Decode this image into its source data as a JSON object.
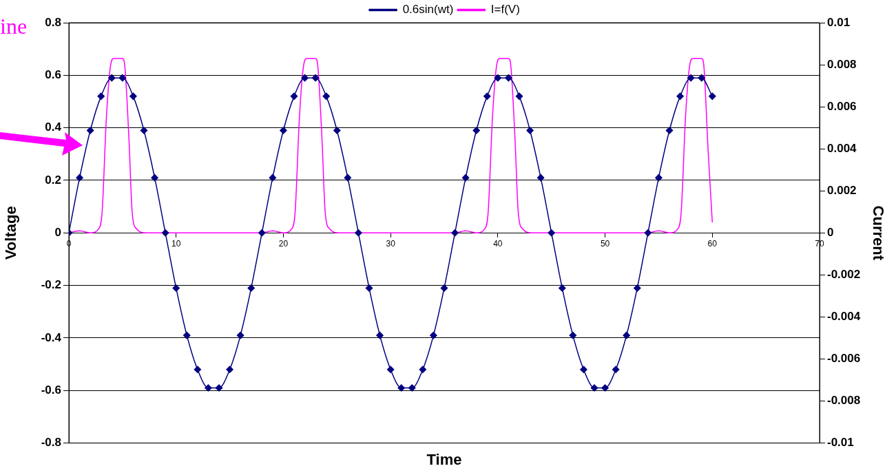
{
  "chart_data": {
    "type": "line",
    "xlabel": "Time",
    "ylabel": "Voltage",
    "y2label": "Current",
    "xlim": [
      0,
      70
    ],
    "xticks": [
      0,
      10,
      20,
      30,
      40,
      50,
      60,
      70
    ],
    "ylim": [
      -0.8,
      0.8
    ],
    "yticks": [
      -0.8,
      -0.6,
      -0.4,
      -0.2,
      0,
      0.2,
      0.4,
      0.6,
      0.8
    ],
    "y2lim": [
      -0.01,
      0.01
    ],
    "y2ticks": [
      -0.01,
      -0.008,
      -0.006,
      -0.004,
      -0.002,
      0,
      0.002,
      0.004,
      0.006,
      0.008,
      0.01
    ],
    "grid": "y",
    "legend": "top",
    "annotations": [
      "ine"
    ],
    "series": [
      {
        "name": "0.6sin(wt)",
        "color": "#000080",
        "marker": "diamond",
        "x": [
          0,
          1,
          2,
          3,
          4,
          5,
          6,
          7,
          8,
          9,
          10,
          11,
          12,
          13,
          14,
          15,
          16,
          17,
          18,
          19,
          20,
          21,
          22,
          23,
          24,
          25,
          26,
          27,
          28,
          29,
          30,
          31,
          32,
          33,
          34,
          35,
          36,
          37,
          38,
          39,
          40,
          41,
          42,
          43,
          44,
          45,
          46,
          47,
          48,
          49,
          50,
          51,
          52,
          53,
          54,
          55,
          56,
          57,
          58,
          59,
          60
        ],
        "values": [
          0,
          0.21,
          0.39,
          0.52,
          0.59,
          0.59,
          0.52,
          0.39,
          0.21,
          0,
          -0.21,
          -0.39,
          -0.52,
          -0.59,
          -0.59,
          -0.52,
          -0.39,
          -0.21,
          0,
          0.21,
          0.39,
          0.52,
          0.59,
          0.59,
          0.52,
          0.39,
          0.21,
          0,
          -0.21,
          -0.39,
          -0.52,
          -0.59,
          -0.59,
          -0.52,
          -0.39,
          -0.21,
          0,
          0.21,
          0.39,
          0.52,
          0.59,
          0.59,
          0.52,
          0.39,
          0.21,
          0,
          -0.21,
          -0.39,
          -0.52,
          -0.59,
          -0.59,
          -0.52,
          -0.39,
          -0.21,
          0,
          0.21,
          0.39,
          0.52,
          0.59,
          0.59,
          0.52
        ]
      },
      {
        "name": "I=f(V)",
        "color": "#ff00ff",
        "marker": "none",
        "axis": "y2",
        "x": [
          0,
          1,
          2,
          2.8,
          3.1,
          3.5,
          3.9,
          4.2,
          5,
          5.2,
          5.6,
          5.9,
          6.3,
          7.2,
          18,
          19,
          20,
          20.8,
          21.1,
          21.5,
          21.9,
          22.2,
          23,
          23.2,
          23.6,
          23.9,
          24.3,
          25.2,
          36,
          37,
          38,
          38.8,
          39.1,
          39.5,
          39.9,
          40.2,
          41,
          41.2,
          41.6,
          41.9,
          42.3,
          43.2,
          54,
          55,
          56,
          56.8,
          57.1,
          57.5,
          57.9,
          58.2,
          59,
          59.2,
          59.6,
          60
        ],
        "values": [
          0,
          0.0001,
          0,
          0.0002,
          0.001,
          0.0055,
          0.008,
          0.0083,
          0.0083,
          0.008,
          0.0045,
          0.001,
          0.0002,
          0,
          0,
          0.0001,
          0,
          0.0002,
          0.001,
          0.0055,
          0.008,
          0.0083,
          0.0083,
          0.008,
          0.0045,
          0.001,
          0.0002,
          0,
          0,
          0.0001,
          0,
          0.0002,
          0.001,
          0.0055,
          0.008,
          0.0083,
          0.0083,
          0.008,
          0.0045,
          0.001,
          0.0002,
          0,
          0,
          0.0001,
          0,
          0.0002,
          0.001,
          0.0055,
          0.008,
          0.0083,
          0.0083,
          0.008,
          0.004,
          0.0005
        ]
      }
    ]
  }
}
